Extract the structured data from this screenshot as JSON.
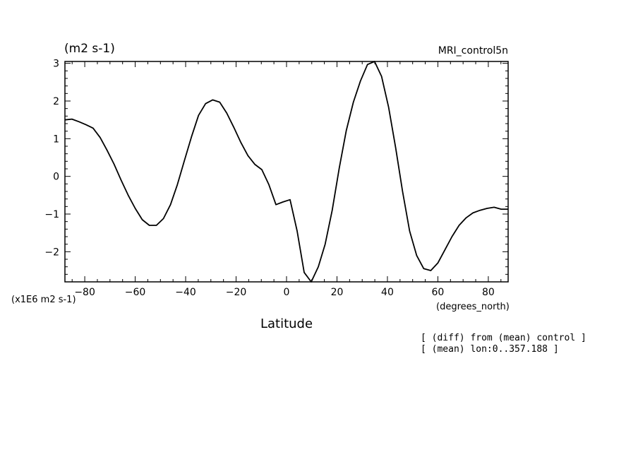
{
  "header": {
    "units_label": "(m2 s-1)",
    "run_label": "MRI_control5n"
  },
  "axis": {
    "y_scale_label": "(x1E6 m2 s-1)",
    "x_units_label": "(degrees_north)",
    "x_title": "Latitude"
  },
  "notes": [
    "[ (diff) from (mean) control ]",
    "[ (mean) lon:0..357.188 ]"
  ],
  "chart_data": {
    "type": "line",
    "title": "",
    "xlabel": "Latitude",
    "ylabel": "(m2 s-1)",
    "xlim": [
      -87.86,
      87.86
    ],
    "ylim": [
      -2.8,
      3.05
    ],
    "x_ticks": [
      -80,
      -60,
      -40,
      -20,
      0,
      20,
      40,
      60,
      80
    ],
    "y_ticks": [
      -2,
      -1,
      0,
      1,
      2,
      3
    ],
    "x_tick_labels": [
      "-80",
      "-60",
      "-40",
      "-20",
      "0",
      "20",
      "40",
      "60",
      "80"
    ],
    "y_tick_labels": [
      "-2",
      "-1",
      "0",
      "1",
      "2",
      "3"
    ],
    "grid": false,
    "series": [
      {
        "x": [
          -87.86,
          -85.1,
          -82.3,
          -79.5,
          -76.7,
          -73.9,
          -71.2,
          -68.4,
          -65.6,
          -62.8,
          -60.0,
          -57.2,
          -54.4,
          -51.6,
          -48.8,
          -46.0,
          -43.3,
          -40.5,
          -37.7,
          -34.9,
          -32.1,
          -29.3,
          -26.5,
          -23.7,
          -20.9,
          -18.1,
          -15.3,
          -12.6,
          -9.8,
          -7.0,
          -4.2,
          -1.4,
          1.4,
          4.2,
          7.0,
          9.8,
          12.6,
          15.3,
          18.1,
          20.9,
          23.7,
          26.5,
          29.3,
          32.1,
          34.9,
          37.7,
          40.5,
          43.3,
          46.0,
          48.8,
          51.6,
          54.4,
          57.2,
          60.0,
          62.8,
          65.6,
          68.4,
          71.2,
          73.9,
          76.7,
          79.5,
          82.3,
          85.1,
          87.86
        ],
        "values": [
          1.5,
          1.52,
          1.45,
          1.37,
          1.28,
          1.03,
          0.7,
          0.33,
          -0.1,
          -0.5,
          -0.85,
          -1.15,
          -1.3,
          -1.3,
          -1.12,
          -0.75,
          -0.22,
          0.42,
          1.05,
          1.62,
          1.93,
          2.03,
          1.97,
          1.68,
          1.3,
          0.9,
          0.55,
          0.32,
          0.18,
          -0.22,
          -0.75,
          -0.68,
          -0.62,
          -1.45,
          -2.55,
          -2.8,
          -2.4,
          -1.8,
          -0.9,
          0.22,
          1.22,
          1.97,
          2.53,
          2.97,
          3.05,
          2.65,
          1.83,
          0.75,
          -0.4,
          -1.45,
          -2.1,
          -2.45,
          -2.5,
          -2.3,
          -1.95,
          -1.6,
          -1.3,
          -1.1,
          -0.97,
          -0.9,
          -0.85,
          -0.82,
          -0.87,
          -0.87
        ]
      }
    ]
  }
}
